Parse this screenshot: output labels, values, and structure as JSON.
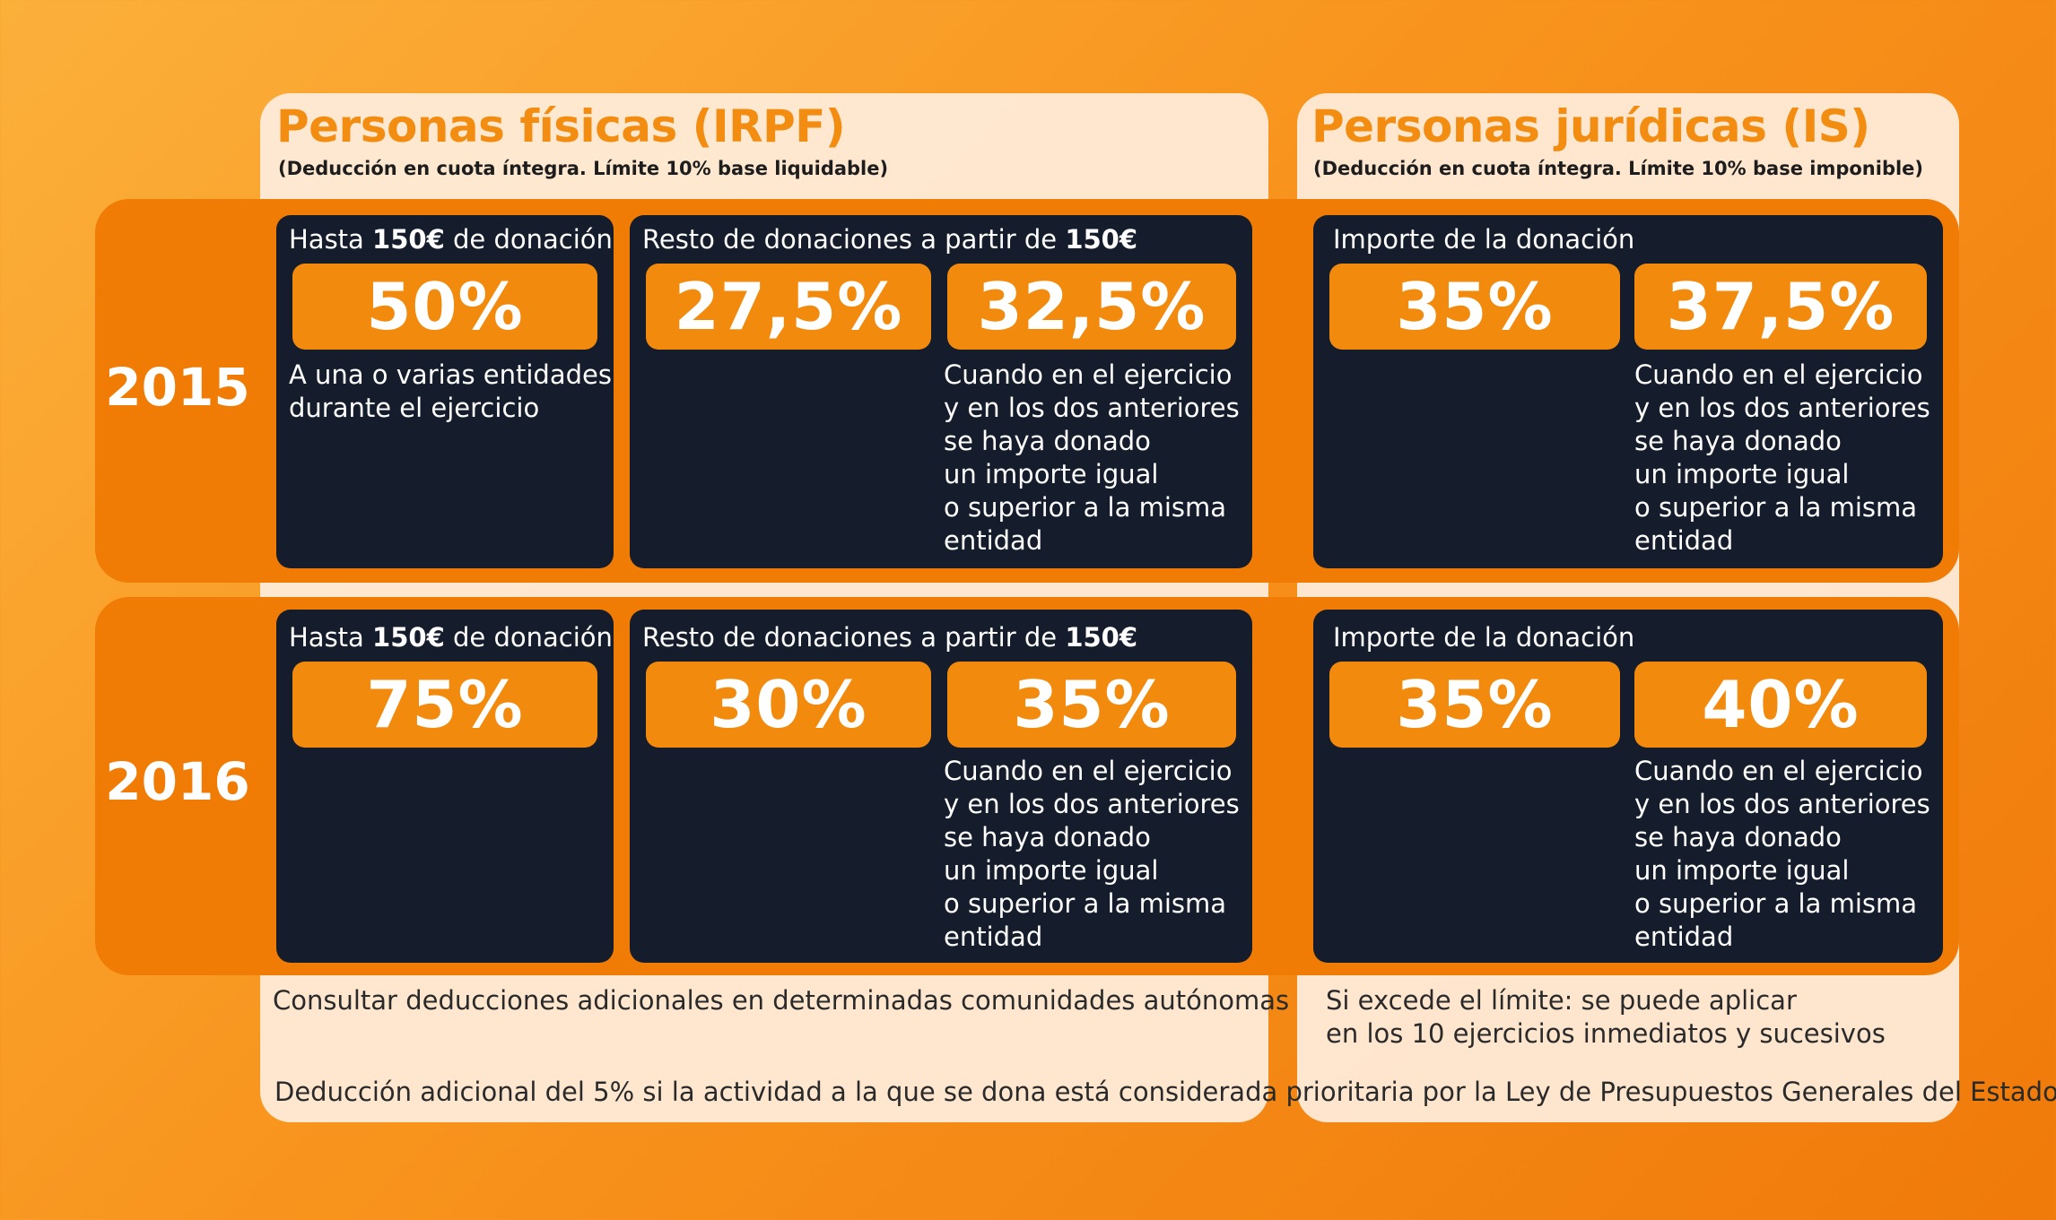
{
  "irpf": {
    "title": "Personas físicas (IRPF)",
    "subtitle": "(Deducción en cuota íntegra. Límite 10% base liquidable)"
  },
  "is": {
    "title": "Personas jurídicas (IS)",
    "subtitle": "(Deducción en cuota íntegra. Límite 10% base imponible)"
  },
  "labels": {
    "hasta_prefix": "Hasta ",
    "amount": "150€",
    "hasta_suffix": " de donación",
    "resto_prefix": "Resto de donaciones a partir de ",
    "importe": "Importe de la donación",
    "condition": "Cuando en el ejercicio\ny en los dos anteriores\nse haya donado\nun importe igual\no superior a la misma\nentidad",
    "entidades": "A una o varias entidades\ndurante el ejercicio"
  },
  "rows": [
    {
      "year": "2015",
      "irpf_first": "50%",
      "irpf_rest": "27,5%",
      "irpf_repeat": "32,5%",
      "is_base": "35%",
      "is_repeat": "37,5%"
    },
    {
      "year": "2016",
      "irpf_first": "75%",
      "irpf_rest": "30%",
      "irpf_repeat": "35%",
      "is_base": "35%",
      "is_repeat": "40%"
    }
  ],
  "notes": {
    "irpf": "Consultar deducciones adicionales en determinadas comunidades autónomas",
    "is": "Si excede el límite: se puede aplicar\nen los 10 ejercicios inmediatos y sucesivos",
    "footer": "Deducción adicional del 5% si la actividad a la que se dona está considerada prioritaria por la Ley de Presupuestos Generales del Estado"
  },
  "colors": {
    "background": "#f8941d",
    "accent": "#f28a0e",
    "card": "#151d2c",
    "panel": "#ffeede"
  }
}
